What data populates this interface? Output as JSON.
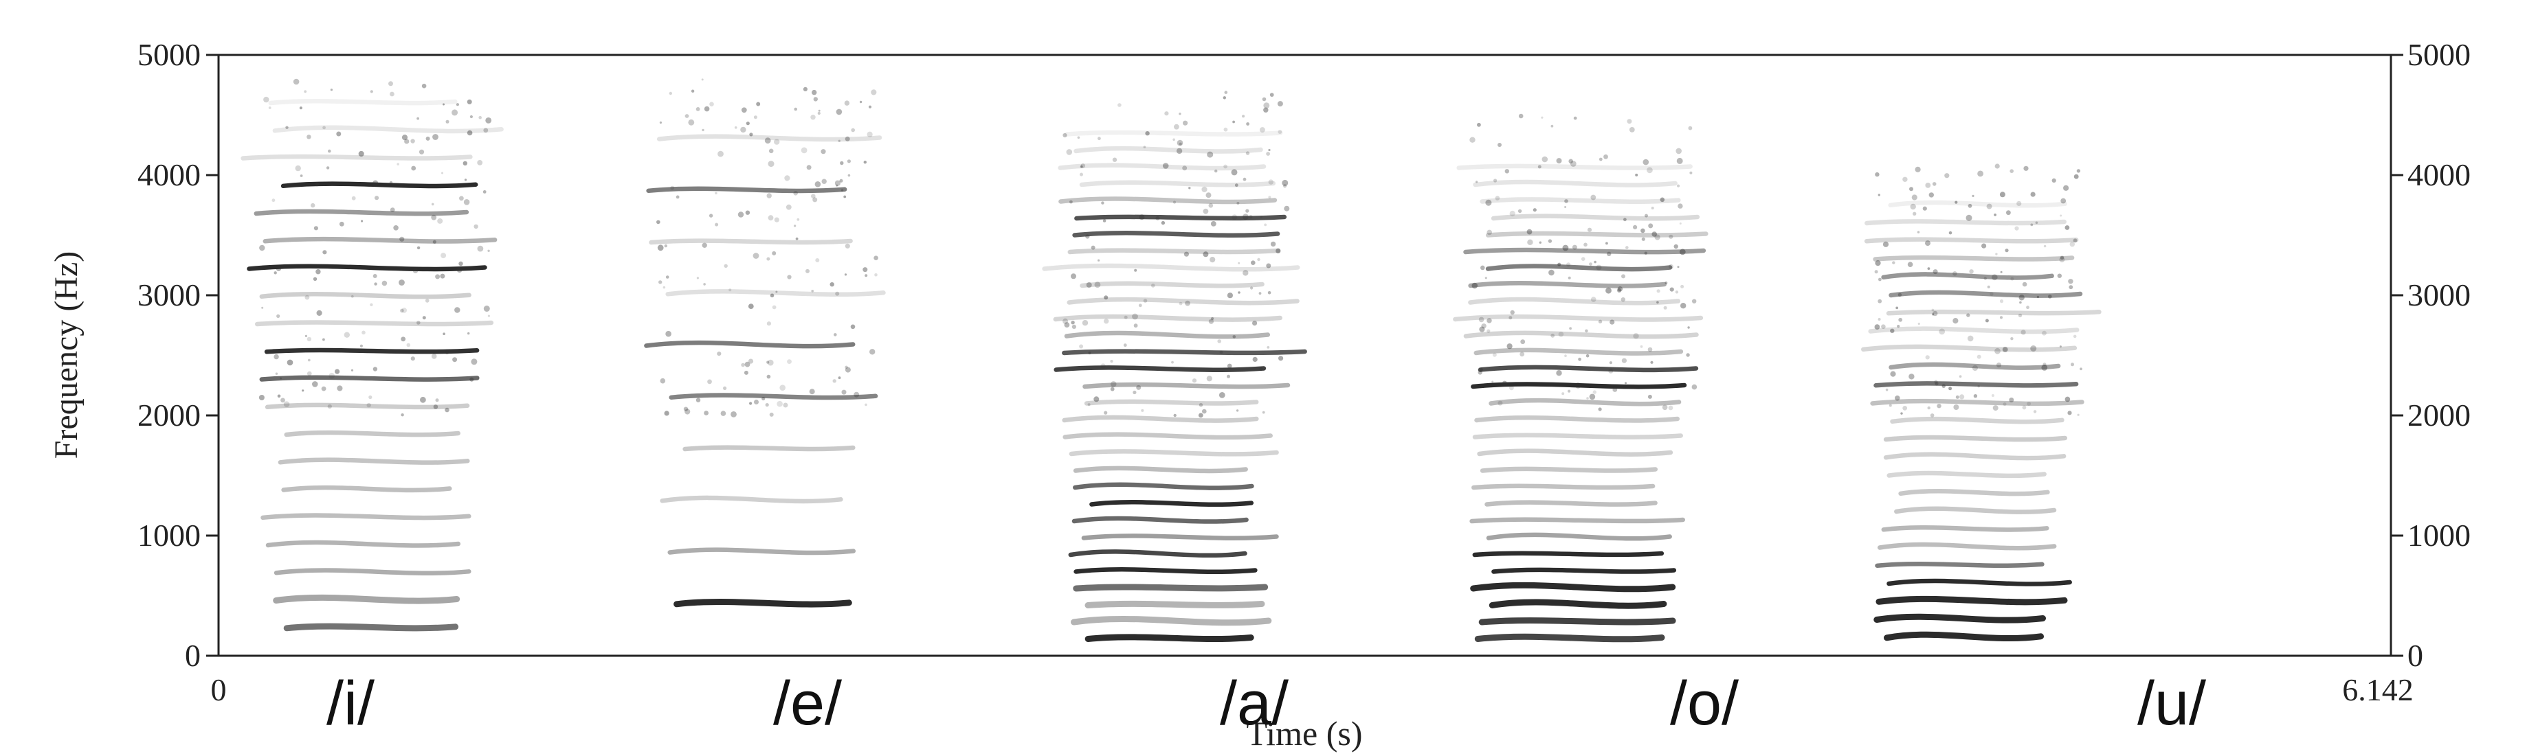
{
  "chart_data": {
    "type": "heatmap",
    "subtype": "spectrogram",
    "title": "",
    "xlabel": "Time (s)",
    "ylabel": "Frequency (Hz)",
    "xlim": [
      0,
      6.142
    ],
    "ylim": [
      0,
      5000
    ],
    "x_tick_labels": [
      "0",
      "6.142"
    ],
    "y_ticks": [
      0,
      1000,
      2000,
      3000,
      4000,
      5000
    ],
    "y_tick_labels": [
      "0",
      "1000",
      "2000",
      "3000",
      "4000",
      "5000"
    ],
    "right_axis_ticks": true,
    "grid": false,
    "colormap": "grayscale",
    "segments": [
      {
        "label": "/i/",
        "t_start": 0.16,
        "t_end": 0.69,
        "f0": 230,
        "hf_top": 4850,
        "formants": [
          {
            "f": 2450,
            "i": 0.95
          },
          {
            "f": 3250,
            "i": 0.9
          },
          {
            "f": 3850,
            "i": 0.85
          }
        ]
      },
      {
        "label": "/e/",
        "t_start": 1.28,
        "t_end": 1.79,
        "f0": 430,
        "hf_top": 4850,
        "formants": [
          {
            "f": 450,
            "i": 0.95
          },
          {
            "f": 2000,
            "i": 0.9
          },
          {
            "f": 2700,
            "i": 0.9
          },
          {
            "f": 3800,
            "i": 0.7
          }
        ]
      },
      {
        "label": "/a/",
        "t_start": 2.43,
        "t_end": 2.95,
        "f0": 140,
        "hf_top": 4700,
        "formants": [
          {
            "f": 700,
            "i": 1.0
          },
          {
            "f": 1250,
            "i": 1.0
          },
          {
            "f": 2450,
            "i": 0.85
          },
          {
            "f": 3600,
            "i": 0.7
          }
        ]
      },
      {
        "label": "/o/",
        "t_start": 3.58,
        "t_end": 4.1,
        "f0": 140,
        "hf_top": 4500,
        "formants": [
          {
            "f": 450,
            "i": 1.0
          },
          {
            "f": 780,
            "i": 1.0
          },
          {
            "f": 2300,
            "i": 0.75
          },
          {
            "f": 3250,
            "i": 0.55
          }
        ]
      },
      {
        "label": "/u/",
        "t_start": 4.72,
        "t_end": 5.2,
        "f0": 150,
        "hf_top": 4100,
        "formants": [
          {
            "f": 380,
            "i": 1.0
          },
          {
            "f": 600,
            "i": 0.95
          },
          {
            "f": 2300,
            "i": 0.45
          },
          {
            "f": 3100,
            "i": 0.4
          }
        ]
      }
    ]
  }
}
